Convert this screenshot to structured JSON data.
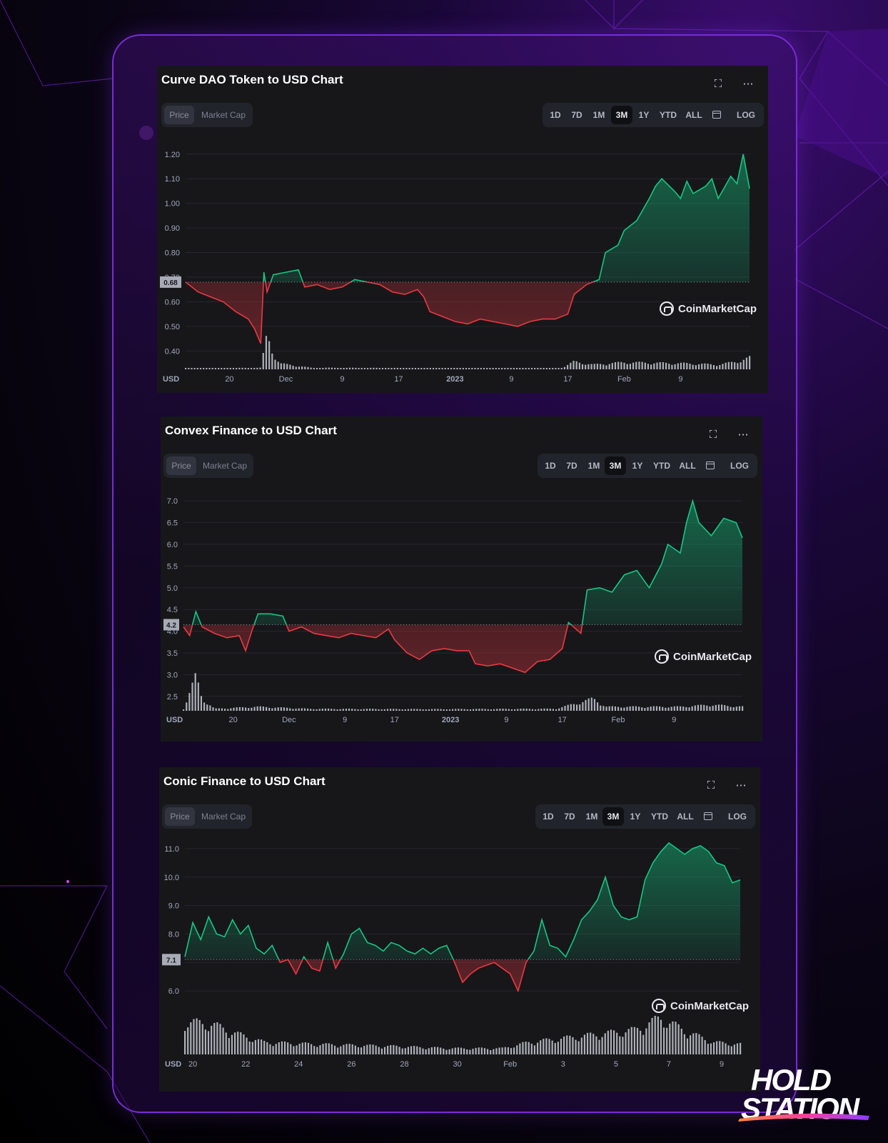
{
  "brand": {
    "line1": "HOLD",
    "line2": "STATION"
  },
  "colors": {
    "up": "#16c784",
    "down": "#ea3943",
    "bg": "#17171a",
    "accent": "#7a2bd6"
  },
  "common": {
    "tabs": [
      "Price",
      "Market Cap"
    ],
    "active_tab": "Price",
    "ranges": [
      "1D",
      "7D",
      "1M",
      "3M",
      "1Y",
      "YTD",
      "ALL"
    ],
    "active_range": "3M",
    "log_label": "LOG",
    "calendar_icon": "calendar-icon",
    "fullscreen_icon": "expand-icon",
    "more_icon": "more-icon",
    "currency_label": "USD",
    "watermark": "CoinMarketCap"
  },
  "chart_data": [
    {
      "type": "area",
      "title": "Curve DAO Token to USD Chart",
      "xlabel": "",
      "ylabel": "",
      "x_ticks": [
        "20",
        "Dec",
        "9",
        "17",
        "2023",
        "9",
        "17",
        "Feb",
        "9"
      ],
      "y_ticks": [
        0.4,
        0.5,
        0.6,
        0.7,
        0.8,
        0.9,
        1.0,
        1.1,
        1.2
      ],
      "ylim": [
        0.34,
        1.24
      ],
      "baseline_label": "0.68",
      "baseline": 0.68,
      "x_range": [
        0,
        90
      ],
      "x_tick_positions": [
        7,
        16,
        25,
        34,
        43,
        52,
        61,
        70,
        79
      ],
      "series": [
        {
          "points": [
            [
              0,
              0.68
            ],
            [
              2,
              0.64
            ],
            [
              4,
              0.62
            ],
            [
              6,
              0.6
            ],
            [
              8,
              0.56
            ],
            [
              10,
              0.53
            ],
            [
              11,
              0.49
            ],
            [
              12,
              0.43
            ],
            [
              12.5,
              0.72
            ],
            [
              13,
              0.64
            ],
            [
              14,
              0.71
            ],
            [
              16,
              0.72
            ],
            [
              18,
              0.73
            ],
            [
              19,
              0.66
            ],
            [
              21,
              0.67
            ],
            [
              23,
              0.65
            ],
            [
              25,
              0.66
            ],
            [
              27,
              0.69
            ],
            [
              29,
              0.68
            ],
            [
              31,
              0.67
            ],
            [
              33,
              0.64
            ],
            [
              35,
              0.63
            ],
            [
              37,
              0.65
            ],
            [
              38,
              0.62
            ],
            [
              39,
              0.56
            ],
            [
              41,
              0.54
            ],
            [
              43,
              0.52
            ],
            [
              45,
              0.51
            ],
            [
              47,
              0.53
            ],
            [
              49,
              0.52
            ],
            [
              51,
              0.51
            ],
            [
              53,
              0.5
            ],
            [
              55,
              0.52
            ],
            [
              57,
              0.53
            ],
            [
              59,
              0.53
            ],
            [
              61,
              0.55
            ],
            [
              62,
              0.63
            ],
            [
              64,
              0.67
            ],
            [
              66,
              0.69
            ],
            [
              67,
              0.8
            ],
            [
              69,
              0.83
            ],
            [
              70,
              0.89
            ],
            [
              72,
              0.93
            ],
            [
              74,
              1.02
            ],
            [
              75,
              1.07
            ],
            [
              76,
              1.1
            ],
            [
              78,
              1.05
            ],
            [
              79,
              1.02
            ],
            [
              80,
              1.09
            ],
            [
              81,
              1.04
            ],
            [
              83,
              1.07
            ],
            [
              84,
              1.1
            ],
            [
              85,
              1.02
            ],
            [
              87,
              1.11
            ],
            [
              88,
              1.08
            ],
            [
              89,
              1.2
            ],
            [
              90,
              1.06
            ]
          ]
        }
      ],
      "volume": [
        [
          0,
          0.02
        ],
        [
          12,
          0.04
        ],
        [
          13,
          0.9
        ],
        [
          14,
          0.4
        ],
        [
          15,
          0.15
        ],
        [
          20,
          0.04
        ],
        [
          40,
          0.03
        ],
        [
          60,
          0.03
        ],
        [
          62,
          0.2
        ],
        [
          65,
          0.12
        ],
        [
          70,
          0.18
        ],
        [
          80,
          0.15
        ],
        [
          85,
          0.12
        ],
        [
          88,
          0.2
        ],
        [
          90,
          0.3
        ]
      ]
    },
    {
      "type": "area",
      "title": "Convex Finance to USD Chart",
      "xlabel": "",
      "ylabel": "",
      "x_ticks": [
        "20",
        "Dec",
        "9",
        "17",
        "2023",
        "9",
        "17",
        "Feb",
        "9"
      ],
      "y_ticks": [
        2.5,
        3.0,
        3.5,
        4.0,
        4.5,
        5.0,
        5.5,
        6.0,
        6.5,
        7.0
      ],
      "ylim": [
        2.2,
        7.3
      ],
      "baseline_label": "4.2",
      "baseline": 4.15,
      "x_range": [
        0,
        90
      ],
      "x_tick_positions": [
        8,
        17,
        26,
        34,
        43,
        52,
        61,
        70,
        79
      ],
      "series": [
        {
          "points": [
            [
              0,
              4.1
            ],
            [
              1,
              3.9
            ],
            [
              2,
              4.45
            ],
            [
              3,
              4.1
            ],
            [
              5,
              3.95
            ],
            [
              7,
              3.85
            ],
            [
              9,
              3.9
            ],
            [
              10,
              3.55
            ],
            [
              11,
              4.0
            ],
            [
              12,
              4.4
            ],
            [
              14,
              4.4
            ],
            [
              16,
              4.35
            ],
            [
              17,
              4.0
            ],
            [
              19,
              4.1
            ],
            [
              21,
              3.95
            ],
            [
              23,
              3.9
            ],
            [
              25,
              3.85
            ],
            [
              27,
              3.95
            ],
            [
              29,
              3.9
            ],
            [
              31,
              3.85
            ],
            [
              33,
              4.05
            ],
            [
              34,
              3.8
            ],
            [
              36,
              3.5
            ],
            [
              38,
              3.35
            ],
            [
              40,
              3.55
            ],
            [
              42,
              3.6
            ],
            [
              44,
              3.55
            ],
            [
              46,
              3.55
            ],
            [
              47,
              3.25
            ],
            [
              49,
              3.2
            ],
            [
              51,
              3.25
            ],
            [
              53,
              3.15
            ],
            [
              55,
              3.05
            ],
            [
              57,
              3.3
            ],
            [
              59,
              3.35
            ],
            [
              61,
              3.6
            ],
            [
              62,
              4.2
            ],
            [
              64,
              3.95
            ],
            [
              65,
              4.95
            ],
            [
              67,
              5.0
            ],
            [
              69,
              4.9
            ],
            [
              71,
              5.3
            ],
            [
              73,
              5.4
            ],
            [
              75,
              5.0
            ],
            [
              77,
              5.55
            ],
            [
              78,
              6.0
            ],
            [
              80,
              5.8
            ],
            [
              81,
              6.5
            ],
            [
              82,
              7.0
            ],
            [
              83,
              6.5
            ],
            [
              85,
              6.2
            ],
            [
              87,
              6.6
            ],
            [
              89,
              6.5
            ],
            [
              90,
              6.15
            ]
          ]
        }
      ],
      "volume": [
        [
          0,
          0.05
        ],
        [
          2,
          0.85
        ],
        [
          3,
          0.3
        ],
        [
          5,
          0.05
        ],
        [
          12,
          0.1
        ],
        [
          20,
          0.05
        ],
        [
          40,
          0.04
        ],
        [
          60,
          0.05
        ],
        [
          66,
          0.3
        ],
        [
          68,
          0.1
        ],
        [
          80,
          0.1
        ],
        [
          85,
          0.15
        ],
        [
          90,
          0.1
        ]
      ]
    },
    {
      "type": "area",
      "title": "Conic Finance to USD Chart",
      "xlabel": "",
      "ylabel": "",
      "x_ticks": [
        "20",
        "22",
        "24",
        "26",
        "28",
        "30",
        "Feb",
        "3",
        "5",
        "7",
        "9"
      ],
      "y_ticks": [
        6.0,
        7.0,
        8.0,
        9.0,
        10.0,
        11.0
      ],
      "ylim": [
        5.2,
        11.6
      ],
      "baseline_label": "7.1",
      "baseline": 7.1,
      "x_range": [
        0,
        21
      ],
      "x_tick_positions": [
        0.3,
        2.3,
        4.3,
        6.3,
        8.3,
        10.3,
        12.3,
        14.3,
        16.3,
        18.3,
        20.3
      ],
      "series": [
        {
          "points": [
            [
              0,
              7.2
            ],
            [
              0.3,
              8.4
            ],
            [
              0.6,
              7.8
            ],
            [
              0.9,
              8.6
            ],
            [
              1.2,
              8.0
            ],
            [
              1.5,
              7.9
            ],
            [
              1.8,
              8.5
            ],
            [
              2.1,
              8.0
            ],
            [
              2.4,
              8.3
            ],
            [
              2.7,
              7.5
            ],
            [
              3.0,
              7.3
            ],
            [
              3.3,
              7.6
            ],
            [
              3.6,
              7.0
            ],
            [
              3.9,
              7.1
            ],
            [
              4.2,
              6.6
            ],
            [
              4.5,
              7.2
            ],
            [
              4.8,
              6.8
            ],
            [
              5.1,
              6.7
            ],
            [
              5.4,
              7.7
            ],
            [
              5.7,
              6.8
            ],
            [
              6.0,
              7.3
            ],
            [
              6.3,
              8.0
            ],
            [
              6.6,
              8.2
            ],
            [
              6.9,
              7.7
            ],
            [
              7.2,
              7.6
            ],
            [
              7.5,
              7.4
            ],
            [
              7.8,
              7.7
            ],
            [
              8.1,
              7.6
            ],
            [
              8.4,
              7.4
            ],
            [
              8.7,
              7.3
            ],
            [
              9.0,
              7.5
            ],
            [
              9.3,
              7.3
            ],
            [
              9.6,
              7.5
            ],
            [
              9.9,
              7.6
            ],
            [
              10.2,
              7.0
            ],
            [
              10.5,
              6.3
            ],
            [
              10.8,
              6.6
            ],
            [
              11.1,
              6.8
            ],
            [
              11.4,
              6.9
            ],
            [
              11.7,
              7.0
            ],
            [
              12.0,
              6.8
            ],
            [
              12.3,
              6.6
            ],
            [
              12.6,
              6.0
            ],
            [
              12.9,
              7.0
            ],
            [
              13.2,
              7.4
            ],
            [
              13.5,
              8.5
            ],
            [
              13.8,
              7.6
            ],
            [
              14.1,
              7.5
            ],
            [
              14.4,
              7.2
            ],
            [
              14.7,
              7.8
            ],
            [
              15.0,
              8.5
            ],
            [
              15.3,
              8.8
            ],
            [
              15.6,
              9.2
            ],
            [
              15.9,
              10.0
            ],
            [
              16.2,
              9.0
            ],
            [
              16.5,
              8.6
            ],
            [
              16.8,
              8.5
            ],
            [
              17.1,
              8.6
            ],
            [
              17.4,
              9.9
            ],
            [
              17.7,
              10.5
            ],
            [
              18.0,
              10.9
            ],
            [
              18.3,
              11.2
            ],
            [
              18.6,
              11.0
            ],
            [
              18.9,
              10.8
            ],
            [
              19.2,
              11.0
            ],
            [
              19.5,
              11.1
            ],
            [
              19.8,
              10.9
            ],
            [
              20.1,
              10.5
            ],
            [
              20.4,
              10.4
            ],
            [
              20.7,
              9.8
            ],
            [
              21.0,
              9.9
            ]
          ]
        }
      ],
      "volume": [
        [
          0,
          0.8
        ],
        [
          1,
          0.75
        ],
        [
          2,
          0.5
        ],
        [
          3,
          0.3
        ],
        [
          5,
          0.25
        ],
        [
          8,
          0.2
        ],
        [
          10,
          0.15
        ],
        [
          12,
          0.15
        ],
        [
          13,
          0.3
        ],
        [
          15,
          0.45
        ],
        [
          17,
          0.6
        ],
        [
          18,
          0.9
        ],
        [
          19,
          0.55
        ],
        [
          20,
          0.3
        ],
        [
          21,
          0.25
        ]
      ]
    }
  ]
}
